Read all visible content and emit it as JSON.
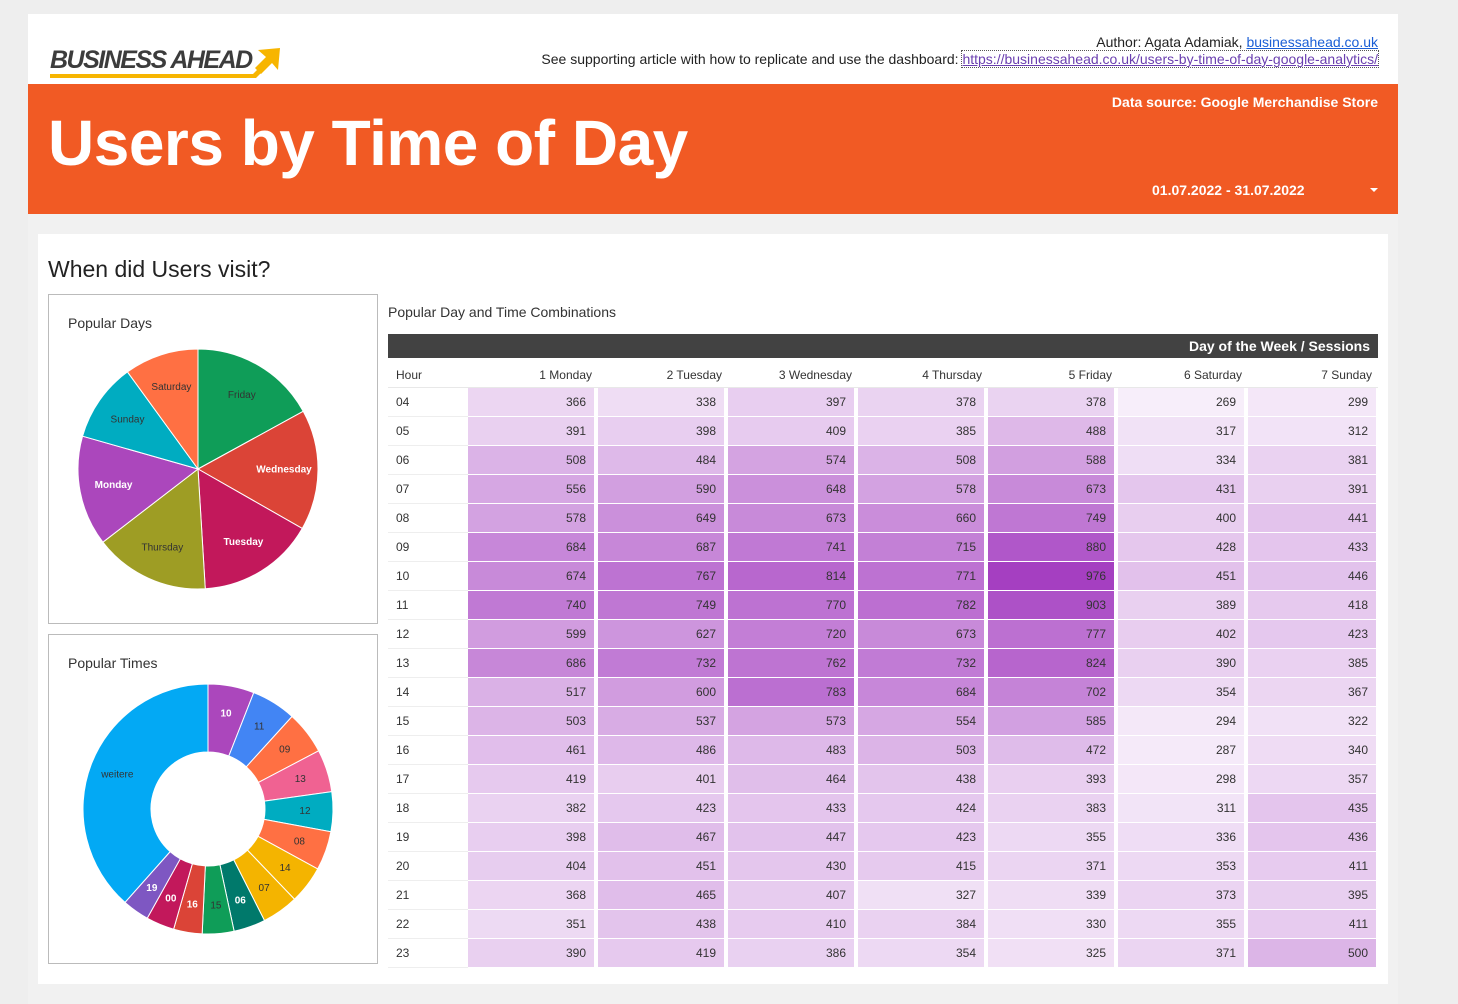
{
  "header": {
    "logo_text": "BUSINESS AHEAD",
    "author_prefix": "Author: Agata Adamiak,",
    "author_link": "businessahead.co.uk",
    "article_prefix": "See supporting article with how to replicate and use the dashboard:",
    "article_link": "https://businessahead.co.uk/users-by-time-of-day-google-analytics/"
  },
  "banner": {
    "title": "Users by Time of Day",
    "data_source": "Data source: Google Merchandise Store",
    "date_range": "01.07.2022 - 31.07.2022"
  },
  "section_title": "When did Users visit?",
  "colors": {
    "brand_orange": "#f15a24",
    "heat_low": "#f7eefa",
    "heat_high": "#a53fc1"
  },
  "pie_days": {
    "title": "Popular Days",
    "chart_data": {
      "type": "pie",
      "slices": [
        {
          "label": "Friday",
          "value": 11987,
          "color": "#0f9d58",
          "label_color": "#333",
          "bold": false
        },
        {
          "label": "Wednesday",
          "value": 11434,
          "color": "#db4437",
          "label_color": "#fff",
          "bold": true
        },
        {
          "label": "Tuesday",
          "value": 11119,
          "color": "#c2185b",
          "label_color": "#fff",
          "bold": true
        },
        {
          "label": "Thursday",
          "value": 10937,
          "color": "#9e9d24",
          "label_color": "#333",
          "bold": false
        },
        {
          "label": "Monday",
          "value": 10459,
          "color": "#ab47bc",
          "label_color": "#fff",
          "bold": true
        },
        {
          "label": "Sunday",
          "value": 7461,
          "color": "#00acc1",
          "label_color": "#333",
          "bold": false
        },
        {
          "label": "Saturday",
          "value": 7042,
          "color": "#ff7043",
          "label_color": "#333",
          "bold": false
        }
      ]
    }
  },
  "pie_times": {
    "title": "Popular Times",
    "chart_data": {
      "type": "pie",
      "donut": true,
      "slices": [
        {
          "label": "10",
          "value": 4899,
          "color": "#ab47bc",
          "label_color": "#fff",
          "bold": true
        },
        {
          "label": "11",
          "value": 4751,
          "color": "#4285f4",
          "label_color": "#333",
          "bold": false
        },
        {
          "label": "09",
          "value": 4568,
          "color": "#ff7043",
          "label_color": "#333",
          "bold": false
        },
        {
          "label": "13",
          "value": 4511,
          "color": "#f06292",
          "label_color": "#333",
          "bold": false
        },
        {
          "label": "12",
          "value": 4221,
          "color": "#00acc1",
          "label_color": "#333",
          "bold": false
        },
        {
          "label": "08",
          "value": 4150,
          "color": "#ff7043",
          "label_color": "#333",
          "bold": false
        },
        {
          "label": "14",
          "value": 4007,
          "color": "#f4b400",
          "label_color": "#333",
          "bold": false
        },
        {
          "label": "07",
          "value": 3867,
          "color": "#f4b400",
          "label_color": "#333",
          "bold": false
        },
        {
          "label": "06",
          "value": 3377,
          "color": "#00796b",
          "label_color": "#fff",
          "bold": true
        },
        {
          "label": "15",
          "value": 3368,
          "color": "#0f9d58",
          "label_color": "#333",
          "bold": false
        },
        {
          "label": "16",
          "value": 3032,
          "color": "#db4437",
          "label_color": "#fff",
          "bold": true
        },
        {
          "label": "00",
          "value": 3000,
          "color": "#c2185b",
          "label_color": "#fff",
          "bold": true
        },
        {
          "label": "19",
          "value": 2862,
          "color": "#7e57c2",
          "label_color": "#fff",
          "bold": true
        },
        {
          "label": "weitere",
          "value": 31600,
          "color": "#03a9f4",
          "label_color": "#333",
          "bold": false
        }
      ]
    }
  },
  "table": {
    "title": "Popular Day and Time Combinations",
    "header_label": "Day of the Week / Sessions",
    "hour_label": "Hour",
    "chart_data": {
      "type": "heatmap",
      "columns": [
        "1 Monday",
        "2 Tuesday",
        "3 Wednesday",
        "4 Thursday",
        "5 Friday",
        "6 Saturday",
        "7 Sunday"
      ],
      "rows": [
        {
          "hour": "04",
          "values": [
            366,
            338,
            397,
            378,
            378,
            269,
            299
          ]
        },
        {
          "hour": "05",
          "values": [
            391,
            398,
            409,
            385,
            488,
            317,
            312
          ]
        },
        {
          "hour": "06",
          "values": [
            508,
            484,
            574,
            508,
            588,
            334,
            381
          ]
        },
        {
          "hour": "07",
          "values": [
            556,
            590,
            648,
            578,
            673,
            431,
            391
          ]
        },
        {
          "hour": "08",
          "values": [
            578,
            649,
            673,
            660,
            749,
            400,
            441
          ]
        },
        {
          "hour": "09",
          "values": [
            684,
            687,
            741,
            715,
            880,
            428,
            433
          ]
        },
        {
          "hour": "10",
          "values": [
            674,
            767,
            814,
            771,
            976,
            451,
            446
          ]
        },
        {
          "hour": "11",
          "values": [
            740,
            749,
            770,
            782,
            903,
            389,
            418
          ]
        },
        {
          "hour": "12",
          "values": [
            599,
            627,
            720,
            673,
            777,
            402,
            423
          ]
        },
        {
          "hour": "13",
          "values": [
            686,
            732,
            762,
            732,
            824,
            390,
            385
          ]
        },
        {
          "hour": "14",
          "values": [
            517,
            600,
            783,
            684,
            702,
            354,
            367
          ]
        },
        {
          "hour": "15",
          "values": [
            503,
            537,
            573,
            554,
            585,
            294,
            322
          ]
        },
        {
          "hour": "16",
          "values": [
            461,
            486,
            483,
            503,
            472,
            287,
            340
          ]
        },
        {
          "hour": "17",
          "values": [
            419,
            401,
            464,
            438,
            393,
            298,
            357
          ]
        },
        {
          "hour": "18",
          "values": [
            382,
            423,
            433,
            424,
            383,
            311,
            435
          ]
        },
        {
          "hour": "19",
          "values": [
            398,
            467,
            447,
            423,
            355,
            336,
            436
          ]
        },
        {
          "hour": "20",
          "values": [
            404,
            451,
            430,
            415,
            371,
            353,
            411
          ]
        },
        {
          "hour": "21",
          "values": [
            368,
            465,
            407,
            327,
            339,
            373,
            395
          ]
        },
        {
          "hour": "22",
          "values": [
            351,
            438,
            410,
            384,
            330,
            355,
            411
          ]
        },
        {
          "hour": "23",
          "values": [
            390,
            419,
            386,
            354,
            325,
            371,
            500
          ]
        }
      ]
    }
  }
}
